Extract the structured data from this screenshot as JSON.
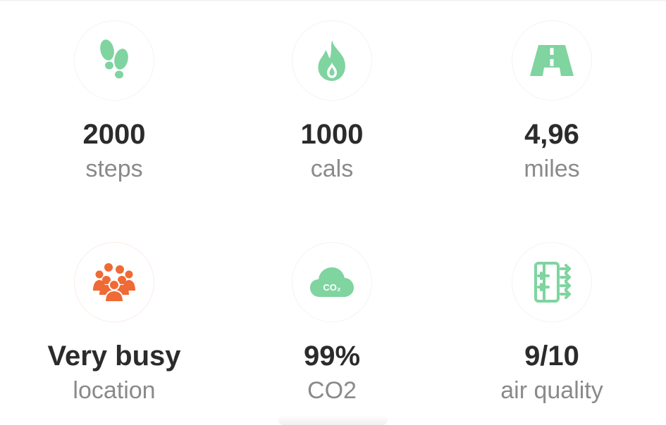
{
  "colors": {
    "green": "#7fd4a0",
    "orange": "#ef6a35",
    "value_text": "#2b2b2b",
    "label_text": "#8a8a8a"
  },
  "stats": [
    {
      "icon": "footprints-icon",
      "value": "2000",
      "label": "steps"
    },
    {
      "icon": "flame-icon",
      "value": "1000",
      "label": "cals"
    },
    {
      "icon": "road-icon",
      "value": "4,96",
      "label": "miles"
    },
    {
      "icon": "crowd-icon",
      "value": "Very busy",
      "label": "location"
    },
    {
      "icon": "co2-cloud-icon",
      "value": "99%",
      "label": "CO2"
    },
    {
      "icon": "air-filter-icon",
      "value": "9/10",
      "label": "air quality"
    }
  ],
  "co2_icon_text": "CO₂"
}
